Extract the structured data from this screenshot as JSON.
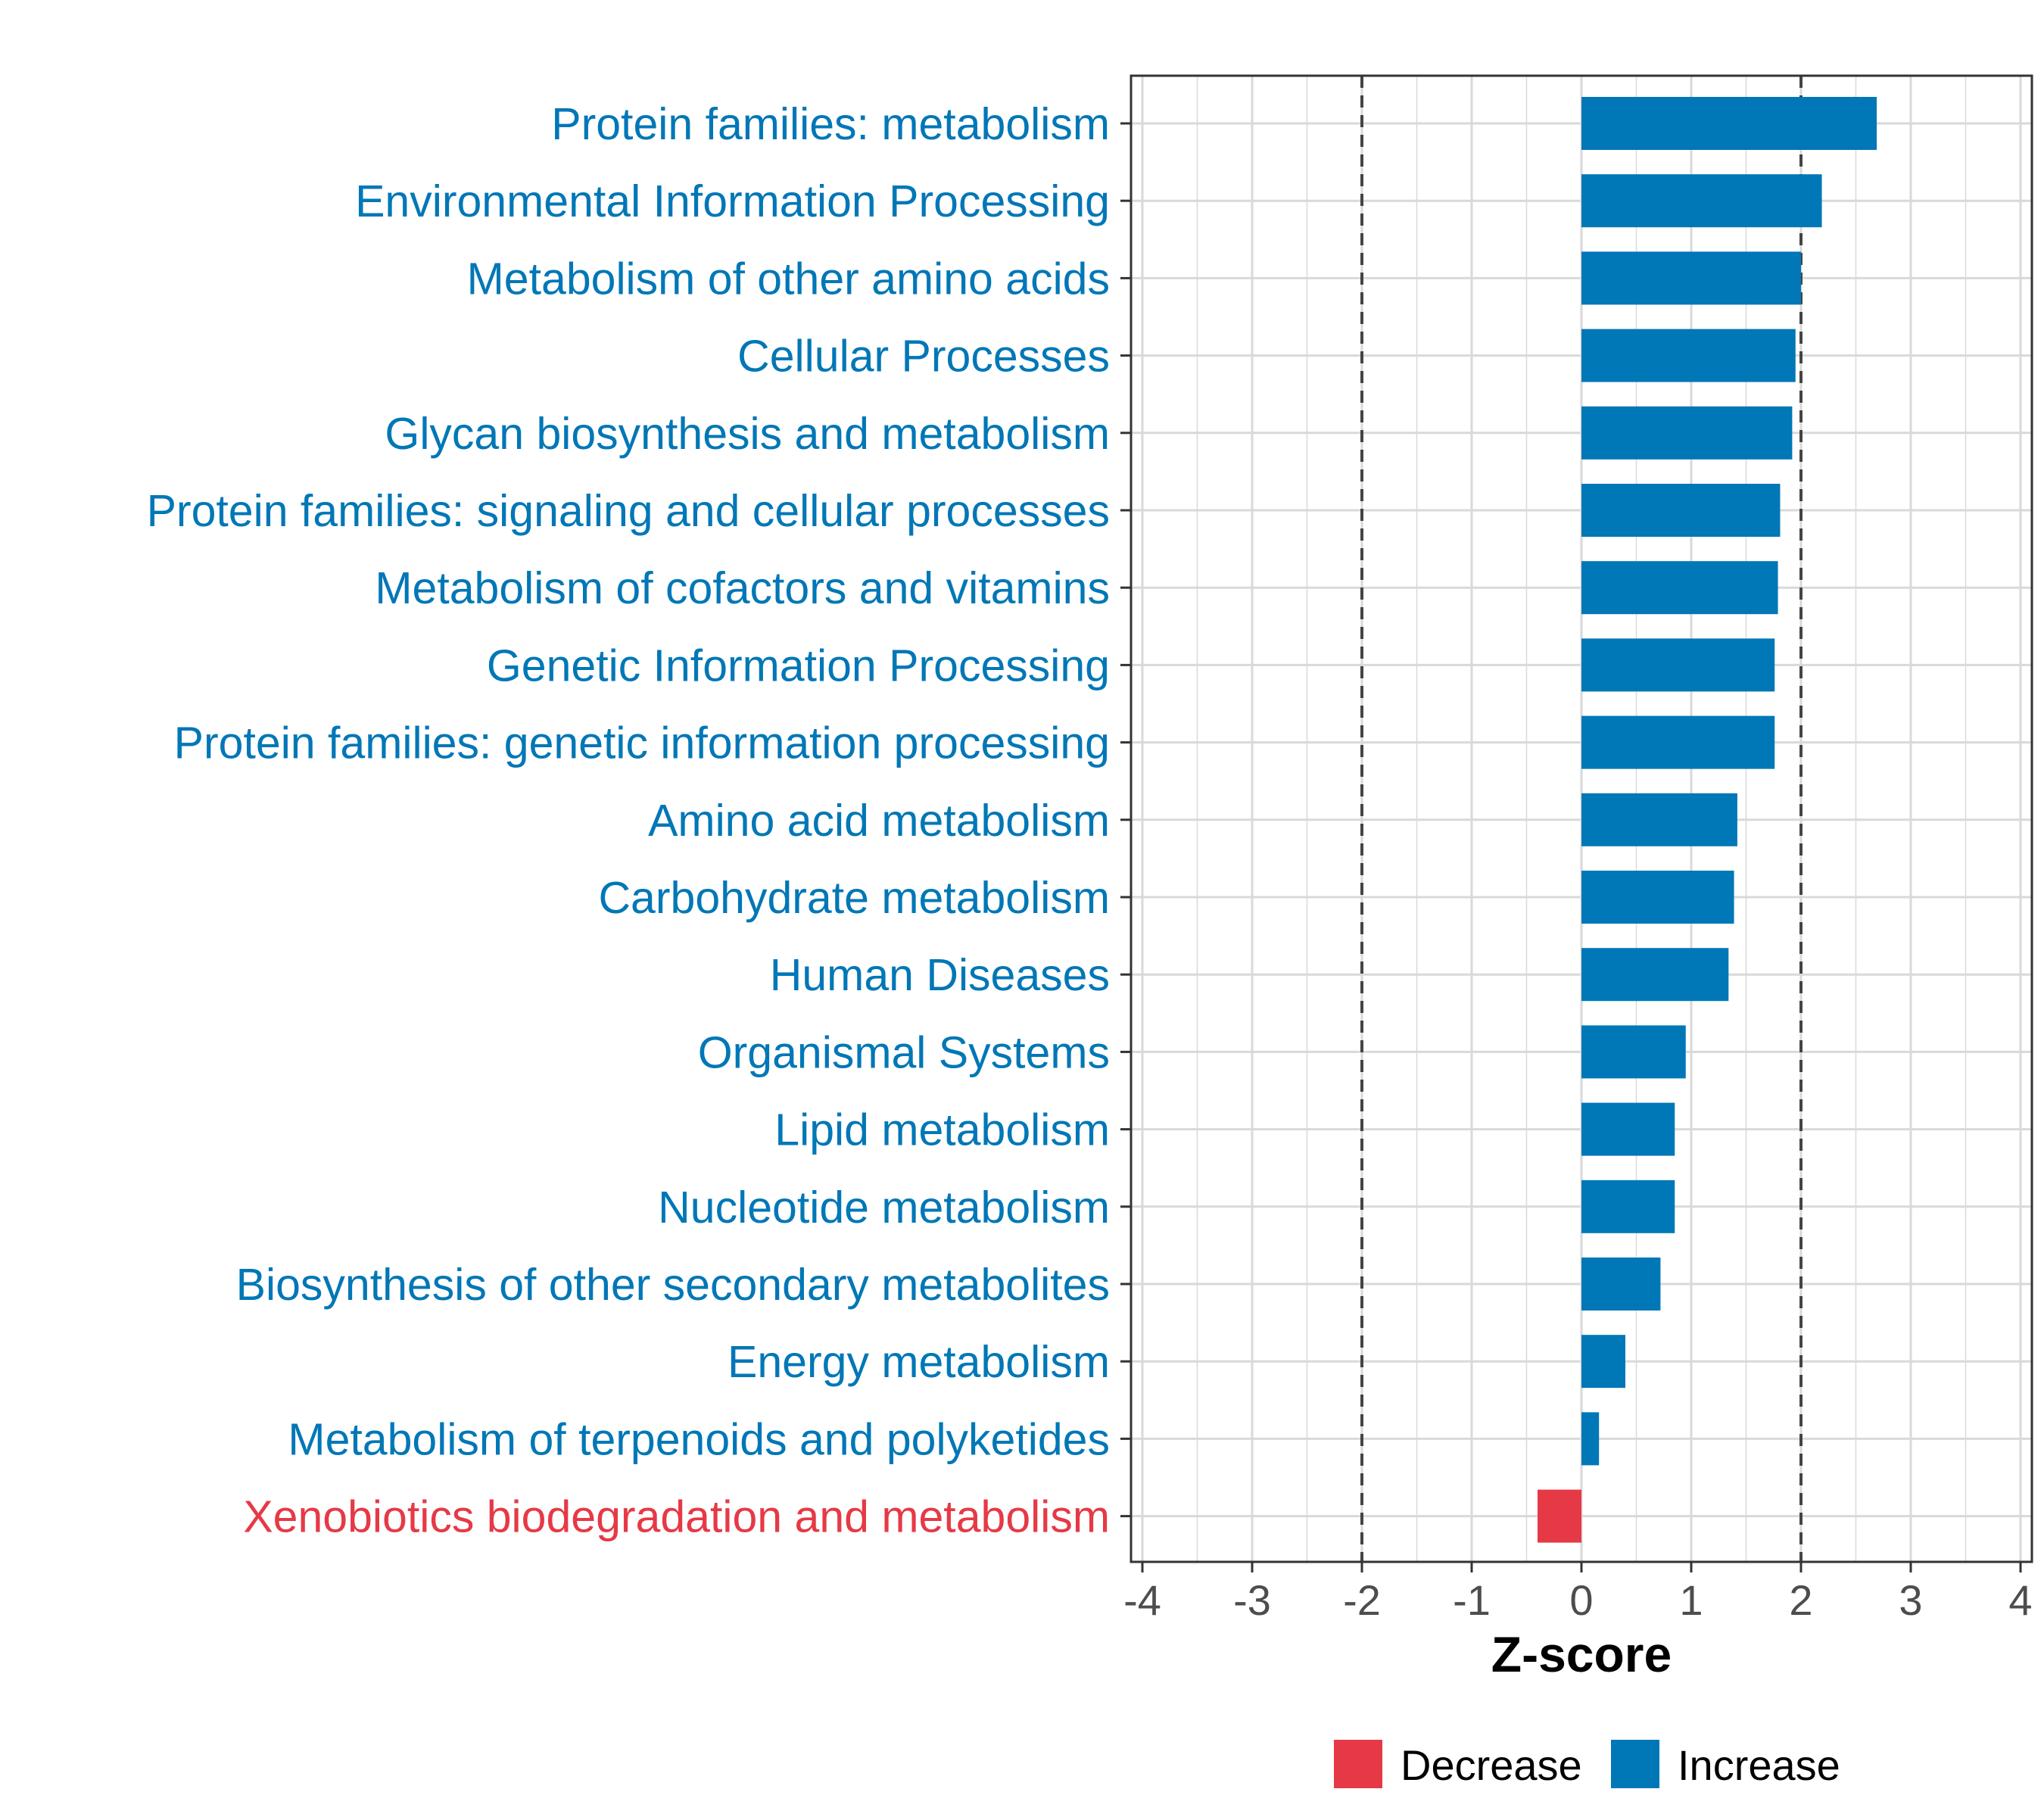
{
  "colors": {
    "increase": "#0077B6",
    "decrease": "#E63946",
    "grid": "#D9D9D9",
    "frame": "#333333",
    "threshold": "#444444",
    "tick_text": "#4D4D4D",
    "axis_title": "#000000"
  },
  "chart_data": {
    "type": "bar",
    "orientation": "horizontal",
    "title": "",
    "xlabel": "Z-score",
    "ylabel": "",
    "xlim": [
      -4,
      4
    ],
    "xticks": [
      -4,
      -3,
      -2,
      -1,
      0,
      1,
      2,
      3,
      4
    ],
    "threshold_lines": [
      -2,
      2
    ],
    "grid": true,
    "legend_position": "bottom",
    "legend": [
      {
        "label": "Decrease",
        "key": "decrease"
      },
      {
        "label": "Increase",
        "key": "increase"
      }
    ],
    "categories": [
      "Protein families: metabolism",
      "Environmental Information Processing",
      "Metabolism of other amino acids",
      "Cellular Processes",
      "Glycan biosynthesis and metabolism",
      "Protein families: signaling and cellular processes",
      "Metabolism of cofactors and vitamins",
      "Genetic Information Processing",
      "Protein families: genetic information processing",
      "Amino acid metabolism",
      "Carbohydrate metabolism",
      "Human Diseases",
      "Organismal Systems",
      "Lipid metabolism",
      "Nucleotide metabolism",
      "Biosynthesis of other secondary metabolites",
      "Energy metabolism",
      "Metabolism of terpenoids and polyketides",
      "Xenobiotics biodegradation and metabolism"
    ],
    "values": [
      2.69,
      2.19,
      2.0,
      1.95,
      1.92,
      1.81,
      1.79,
      1.76,
      1.76,
      1.42,
      1.39,
      1.34,
      0.95,
      0.85,
      0.85,
      0.72,
      0.4,
      0.16,
      -0.4
    ],
    "direction": [
      "increase",
      "increase",
      "increase",
      "increase",
      "increase",
      "increase",
      "increase",
      "increase",
      "increase",
      "increase",
      "increase",
      "increase",
      "increase",
      "increase",
      "increase",
      "increase",
      "increase",
      "increase",
      "decrease"
    ]
  }
}
